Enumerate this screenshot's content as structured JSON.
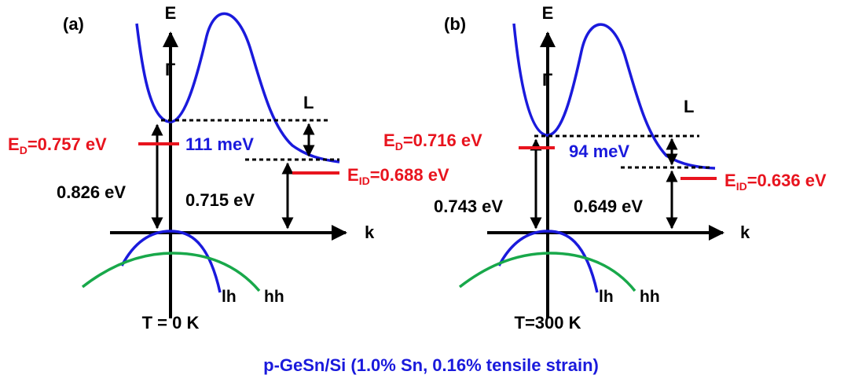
{
  "caption": "p-GeSn/Si (1.0% Sn, 0.16% tensile strain)",
  "colors": {
    "conduction_band": "#1a1adc",
    "light_hole": "#1a1adc",
    "heavy_hole": "#18a84a",
    "impurity_level": "#e8141e",
    "arrows": "#000000"
  },
  "panels": [
    {
      "tag": "(a)",
      "energy_axis": "E",
      "gamma_label": "Γ",
      "l_label": "L",
      "k_label": "k",
      "lh_label": "lh",
      "hh_label": "hh",
      "temperature": "T = 0 K",
      "donor_prefix": "E",
      "donor_sub": "D",
      "donor_value": "=0.757 eV",
      "id_prefix": "E",
      "id_sub": "ID",
      "id_value": "=0.688 eV",
      "gamma_l_split": "111 meV",
      "direct_gap": "0.826 eV",
      "indirect_gap": "0.715 eV"
    },
    {
      "tag": "(b)",
      "energy_axis": "E",
      "gamma_label": "Γ",
      "l_label": "L",
      "k_label": "k",
      "lh_label": "lh",
      "hh_label": "hh",
      "temperature": "T=300 K",
      "donor_prefix": "E",
      "donor_sub": "D",
      "donor_value": "=0.716 eV",
      "id_prefix": "E",
      "id_sub": "ID",
      "id_value": "=0.636 eV",
      "gamma_l_split": "94 meV",
      "direct_gap": "0.743 eV",
      "indirect_gap": "0.649 eV"
    }
  ]
}
